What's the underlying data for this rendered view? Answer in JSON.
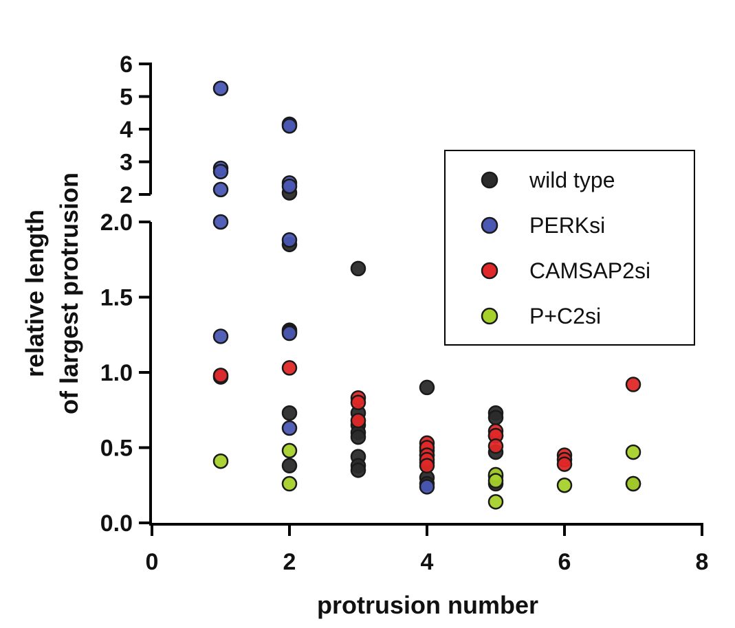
{
  "chart_data": {
    "type": "scatter",
    "xlabel": "protrusion number",
    "ylabel_lines": [
      "relative length",
      "of largest protrusion"
    ],
    "xlim": [
      0,
      8
    ],
    "x_ticks": [
      "0",
      "2",
      "4",
      "6",
      "8"
    ],
    "y_axis_broken": true,
    "ylim_lower": [
      0,
      2.0
    ],
    "ylim_upper": [
      2,
      6
    ],
    "y_ticks_lower": [
      "0.0",
      "0.5",
      "1.0",
      "1.5",
      "2.0"
    ],
    "y_ticks_upper": [
      "2",
      "3",
      "4",
      "5",
      "6"
    ],
    "grid": false,
    "legend_placement": "right",
    "series": [
      {
        "name": "wild type",
        "color": "#2b2b2b",
        "points": [
          [
            2,
            2.05
          ],
          [
            2,
            1.85
          ],
          [
            2,
            1.28
          ],
          [
            2,
            1.27
          ],
          [
            2,
            0.73
          ],
          [
            2,
            0.38
          ],
          [
            3,
            1.69
          ],
          [
            3,
            0.73
          ],
          [
            3,
            0.65
          ],
          [
            3,
            0.6
          ],
          [
            3,
            0.57
          ],
          [
            3,
            0.44
          ],
          [
            3,
            0.38
          ],
          [
            3,
            0.35
          ],
          [
            4,
            0.9
          ],
          [
            4,
            0.48
          ],
          [
            4,
            0.45
          ],
          [
            4,
            0.4
          ],
          [
            4,
            0.3
          ],
          [
            4,
            0.26
          ],
          [
            5,
            0.73
          ],
          [
            5,
            0.7
          ],
          [
            5,
            0.58
          ],
          [
            5,
            0.47
          ],
          [
            5,
            0.31
          ],
          [
            5,
            0.26
          ],
          [
            7,
            0.26
          ]
        ]
      },
      {
        "name": "PERKsi",
        "color": "#4a57b3",
        "points": [
          [
            1,
            5.25
          ],
          [
            1,
            2.8
          ],
          [
            1,
            2.7
          ],
          [
            1,
            2.15
          ],
          [
            1,
            2.0
          ],
          [
            1,
            1.24
          ],
          [
            1,
            0.97
          ],
          [
            2,
            4.15
          ],
          [
            2,
            4.1
          ],
          [
            2,
            2.35
          ],
          [
            2,
            2.25
          ],
          [
            2,
            1.88
          ],
          [
            2,
            1.26
          ],
          [
            2,
            0.63
          ],
          [
            4,
            0.24
          ]
        ]
      },
      {
        "name": "CAMSAP2si",
        "color": "#e02828",
        "points": [
          [
            1,
            0.98
          ],
          [
            2,
            1.03
          ],
          [
            3,
            0.83
          ],
          [
            3,
            0.8
          ],
          [
            3,
            0.68
          ],
          [
            4,
            0.53
          ],
          [
            4,
            0.5
          ],
          [
            4,
            0.45
          ],
          [
            4,
            0.42
          ],
          [
            4,
            0.38
          ],
          [
            5,
            0.61
          ],
          [
            5,
            0.58
          ],
          [
            5,
            0.51
          ],
          [
            6,
            0.45
          ],
          [
            6,
            0.42
          ],
          [
            6,
            0.39
          ],
          [
            7,
            0.92
          ]
        ]
      },
      {
        "name": "P+C2si",
        "color": "#a6d12a",
        "points": [
          [
            1,
            0.41
          ],
          [
            2,
            0.48
          ],
          [
            2,
            0.26
          ],
          [
            5,
            0.32
          ],
          [
            5,
            0.28
          ],
          [
            5,
            0.14
          ],
          [
            6,
            0.25
          ],
          [
            7,
            0.47
          ],
          [
            7,
            0.26
          ]
        ]
      }
    ]
  }
}
